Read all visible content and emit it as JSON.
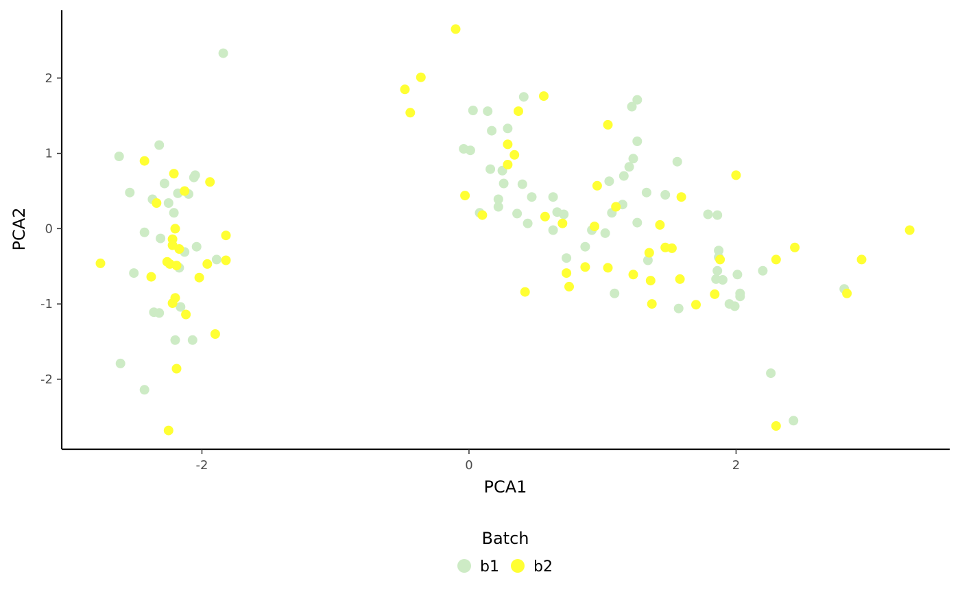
{
  "chart_data": {
    "type": "scatter",
    "title": "",
    "xlabel": "PCA1",
    "ylabel": "PCA2",
    "xlim": [
      -3.05,
      3.6
    ],
    "ylim": [
      -2.93,
      2.9
    ],
    "xticks": [
      -2,
      0,
      2
    ],
    "yticks": [
      -2,
      -1,
      0,
      1,
      2
    ],
    "grid": false,
    "legend": {
      "title": "Batch",
      "placement": "bottom"
    },
    "series": [
      {
        "name": "b1",
        "color": "#cdebc5",
        "points": [
          [
            -1.84,
            2.33
          ],
          [
            -2.62,
            0.96
          ],
          [
            -2.32,
            1.11
          ],
          [
            -2.54,
            0.48
          ],
          [
            -2.28,
            0.6
          ],
          [
            -2.37,
            0.39
          ],
          [
            -2.25,
            0.34
          ],
          [
            -2.21,
            0.21
          ],
          [
            -2.18,
            0.47
          ],
          [
            -2.1,
            0.46
          ],
          [
            -2.06,
            0.68
          ],
          [
            -2.05,
            0.71
          ],
          [
            -2.43,
            -0.05
          ],
          [
            -2.31,
            -0.13
          ],
          [
            -2.13,
            -0.31
          ],
          [
            -2.04,
            -0.24
          ],
          [
            -1.89,
            -0.41
          ],
          [
            -2.17,
            -0.52
          ],
          [
            -2.51,
            -0.59
          ],
          [
            -2.36,
            -1.11
          ],
          [
            -2.32,
            -1.12
          ],
          [
            -2.16,
            -1.04
          ],
          [
            -2.2,
            -1.48
          ],
          [
            -2.07,
            -1.48
          ],
          [
            -2.61,
            -1.79
          ],
          [
            -2.43,
            -2.14
          ],
          [
            0.03,
            1.57
          ],
          [
            0.14,
            1.56
          ],
          [
            0.17,
            1.3
          ],
          [
            0.29,
            1.33
          ],
          [
            0.41,
            1.75
          ],
          [
            -0.04,
            1.06
          ],
          [
            0.01,
            1.04
          ],
          [
            0.16,
            0.79
          ],
          [
            0.25,
            0.77
          ],
          [
            0.26,
            0.6
          ],
          [
            0.22,
            0.39
          ],
          [
            0.22,
            0.29
          ],
          [
            0.08,
            0.21
          ],
          [
            0.36,
            0.2
          ],
          [
            0.4,
            0.59
          ],
          [
            0.47,
            0.42
          ],
          [
            0.44,
            0.07
          ],
          [
            0.63,
            0.42
          ],
          [
            0.66,
            0.22
          ],
          [
            0.71,
            0.19
          ],
          [
            0.63,
            -0.02
          ],
          [
            0.73,
            -0.39
          ],
          [
            0.87,
            -0.24
          ],
          [
            0.92,
            -0.02
          ],
          [
            1.02,
            -0.06
          ],
          [
            1.05,
            0.63
          ],
          [
            1.16,
            0.7
          ],
          [
            1.2,
            0.82
          ],
          [
            1.23,
            0.93
          ],
          [
            1.22,
            1.62
          ],
          [
            1.26,
            1.71
          ],
          [
            1.26,
            1.16
          ],
          [
            1.07,
            0.21
          ],
          [
            1.15,
            0.32
          ],
          [
            1.26,
            0.08
          ],
          [
            1.33,
            0.48
          ],
          [
            1.47,
            0.45
          ],
          [
            1.56,
            0.89
          ],
          [
            1.34,
            -0.42
          ],
          [
            1.09,
            -0.86
          ],
          [
            1.57,
            -1.06
          ],
          [
            1.79,
            0.19
          ],
          [
            1.86,
            0.18
          ],
          [
            1.87,
            -0.29
          ],
          [
            1.87,
            -0.38
          ],
          [
            1.86,
            -0.56
          ],
          [
            1.85,
            -0.67
          ],
          [
            1.9,
            -0.68
          ],
          [
            1.95,
            -1.0
          ],
          [
            1.99,
            -1.03
          ],
          [
            2.01,
            -0.61
          ],
          [
            2.03,
            -0.86
          ],
          [
            2.03,
            -0.9
          ],
          [
            2.2,
            -0.56
          ],
          [
            2.26,
            -1.92
          ],
          [
            2.43,
            -2.55
          ],
          [
            2.81,
            -0.8
          ]
        ]
      },
      {
        "name": "b2",
        "color": "#ffff33",
        "points": [
          [
            -2.76,
            -0.46
          ],
          [
            -2.43,
            0.9
          ],
          [
            -2.21,
            0.73
          ],
          [
            -2.34,
            0.34
          ],
          [
            -2.13,
            0.5
          ],
          [
            -1.94,
            0.62
          ],
          [
            -2.2,
            0.0
          ],
          [
            -2.22,
            -0.14
          ],
          [
            -2.22,
            -0.22
          ],
          [
            -2.17,
            -0.27
          ],
          [
            -2.26,
            -0.44
          ],
          [
            -2.24,
            -0.47
          ],
          [
            -2.19,
            -0.49
          ],
          [
            -1.96,
            -0.47
          ],
          [
            -1.82,
            -0.09
          ],
          [
            -1.82,
            -0.42
          ],
          [
            -2.38,
            -0.64
          ],
          [
            -2.02,
            -0.65
          ],
          [
            -2.2,
            -0.92
          ],
          [
            -2.22,
            -0.99
          ],
          [
            -2.12,
            -1.14
          ],
          [
            -1.9,
            -1.4
          ],
          [
            -2.19,
            -1.86
          ],
          [
            -2.25,
            -2.68
          ],
          [
            -0.1,
            2.65
          ],
          [
            -0.48,
            1.85
          ],
          [
            -0.36,
            2.01
          ],
          [
            -0.44,
            1.54
          ],
          [
            -0.03,
            0.44
          ],
          [
            0.1,
            0.18
          ],
          [
            0.29,
            1.12
          ],
          [
            0.34,
            0.98
          ],
          [
            0.29,
            0.85
          ],
          [
            0.37,
            1.56
          ],
          [
            0.56,
            1.76
          ],
          [
            0.57,
            0.16
          ],
          [
            0.7,
            0.07
          ],
          [
            0.42,
            -0.84
          ],
          [
            0.73,
            -0.59
          ],
          [
            0.75,
            -0.77
          ],
          [
            0.87,
            -0.51
          ],
          [
            0.94,
            0.03
          ],
          [
            0.96,
            0.57
          ],
          [
            1.04,
            1.38
          ],
          [
            1.04,
            -0.52
          ],
          [
            1.1,
            0.29
          ],
          [
            1.23,
            -0.61
          ],
          [
            1.35,
            -0.32
          ],
          [
            1.36,
            -0.69
          ],
          [
            1.37,
            -1.0
          ],
          [
            1.43,
            0.05
          ],
          [
            1.47,
            -0.25
          ],
          [
            1.52,
            -0.26
          ],
          [
            1.58,
            -0.67
          ],
          [
            1.59,
            0.42
          ],
          [
            1.7,
            -1.01
          ],
          [
            1.84,
            -0.87
          ],
          [
            1.88,
            -0.41
          ],
          [
            2.0,
            0.71
          ],
          [
            2.3,
            -0.41
          ],
          [
            2.3,
            -2.62
          ],
          [
            2.44,
            -0.25
          ],
          [
            2.83,
            -0.86
          ],
          [
            2.94,
            -0.41
          ],
          [
            3.3,
            -0.02
          ]
        ]
      }
    ]
  }
}
